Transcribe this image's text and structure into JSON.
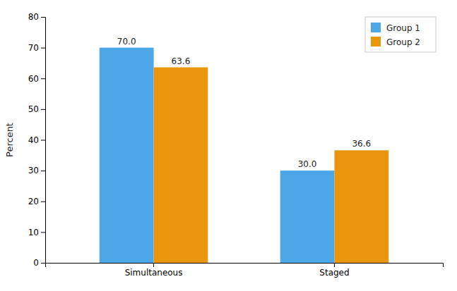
{
  "chart_data": {
    "type": "bar",
    "categories": [
      "Simultaneous",
      "Staged"
    ],
    "series": [
      {
        "name": "Group 1",
        "color": "#4da6e8",
        "values": [
          70.0,
          30.0
        ],
        "value_labels": [
          "70.0",
          "30.0"
        ]
      },
      {
        "name": "Group 2",
        "color": "#e8960c",
        "values": [
          63.6,
          36.6
        ]
      }
    ],
    "ylabel": "Percent",
    "ylim": [
      0,
      80
    ],
    "yticks": [
      0,
      10,
      20,
      30,
      40,
      50,
      60,
      70,
      80
    ],
    "data_labels": true,
    "legend": "upper right",
    "grid": false
  }
}
